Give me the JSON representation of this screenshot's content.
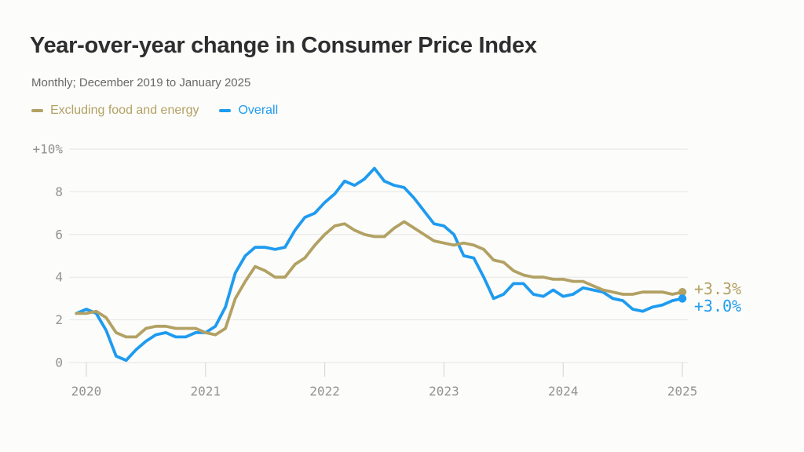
{
  "header": {
    "title": "Year-over-year change in Consumer Price Index",
    "subtitle": "Monthly; December 2019 to January 2025"
  },
  "legend": [
    {
      "label": "Excluding food and energy",
      "color": "#b2a164"
    },
    {
      "label": "Overall",
      "color": "#1e9bf0"
    }
  ],
  "colors": {
    "background": "#fcfcfa",
    "title_text": "#2e2e30",
    "subtitle_text": "#68686a",
    "axis_text": "#929290",
    "gridline": "#e5e5e3",
    "tick": "#d9d9d7",
    "core_series": "#b2a164",
    "overall_series": "#1e9bf0"
  },
  "chart_data": {
    "type": "line",
    "title": "Year-over-year change in Consumer Price Index",
    "subtitle": "Monthly; December 2019 to January 2025",
    "x_unit": "month",
    "x_range": [
      "2019-12",
      "2025-01"
    ],
    "x_tick_labels": [
      "2020",
      "2021",
      "2022",
      "2023",
      "2024",
      "2025"
    ],
    "x_tick_month_indices": [
      1,
      13,
      25,
      37,
      49,
      61
    ],
    "y_ticks": [
      10,
      8,
      6,
      4,
      2,
      0
    ],
    "y_tick_labels": [
      "+10%",
      "8",
      "6",
      "4",
      "2",
      "0"
    ],
    "ylim": [
      0,
      10
    ],
    "grid": "horizontal",
    "legend_position": "top-left",
    "series": [
      {
        "name": "Excluding food and energy",
        "color": "#b2a164",
        "end_label": "+3.3%",
        "values": [
          2.3,
          2.3,
          2.4,
          2.1,
          1.4,
          1.2,
          1.2,
          1.6,
          1.7,
          1.7,
          1.6,
          1.6,
          1.6,
          1.4,
          1.3,
          1.6,
          3.0,
          3.8,
          4.5,
          4.3,
          4.0,
          4.0,
          4.6,
          4.9,
          5.5,
          6.0,
          6.4,
          6.5,
          6.2,
          6.0,
          5.9,
          5.9,
          6.3,
          6.6,
          6.3,
          6.0,
          5.7,
          5.6,
          5.5,
          5.6,
          5.5,
          5.3,
          4.8,
          4.7,
          4.3,
          4.1,
          4.0,
          4.0,
          3.9,
          3.9,
          3.8,
          3.8,
          3.6,
          3.4,
          3.3,
          3.2,
          3.2,
          3.3,
          3.3,
          3.3,
          3.2,
          3.3
        ]
      },
      {
        "name": "Overall",
        "color": "#1e9bf0",
        "end_label": "+3.0%",
        "values": [
          2.3,
          2.5,
          2.3,
          1.5,
          0.3,
          0.1,
          0.6,
          1.0,
          1.3,
          1.4,
          1.2,
          1.2,
          1.4,
          1.4,
          1.7,
          2.6,
          4.2,
          5.0,
          5.4,
          5.4,
          5.3,
          5.4,
          6.2,
          6.8,
          7.0,
          7.5,
          7.9,
          8.5,
          8.3,
          8.6,
          9.1,
          8.5,
          8.3,
          8.2,
          7.7,
          7.1,
          6.5,
          6.4,
          6.0,
          5.0,
          4.9,
          4.0,
          3.0,
          3.2,
          3.7,
          3.7,
          3.2,
          3.1,
          3.4,
          3.1,
          3.2,
          3.5,
          3.4,
          3.3,
          3.0,
          2.9,
          2.5,
          2.4,
          2.6,
          2.7,
          2.9,
          3.0
        ]
      }
    ]
  }
}
